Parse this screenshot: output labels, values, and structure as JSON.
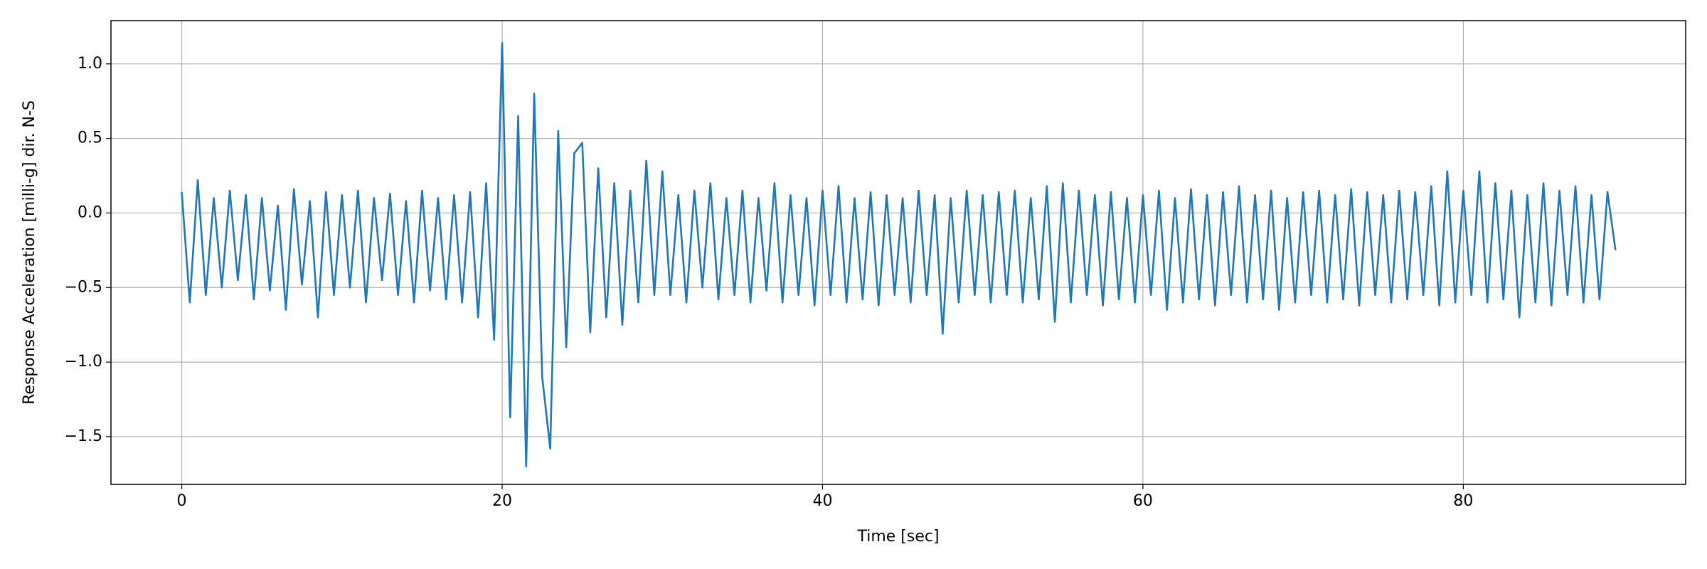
{
  "chart_data": {
    "type": "line",
    "xlabel": "Time [sec]",
    "ylabel": "Response Acceleration [milli-g] dir. N-S",
    "color": "#1f77b4",
    "grid": true,
    "xlim": [
      -4.42,
      93.88
    ],
    "ylim": [
      -1.82,
      1.29
    ],
    "xticks": [
      0,
      20,
      40,
      60,
      80
    ],
    "yticks": [
      {
        "value": -1.5,
        "label": "−1.5"
      },
      {
        "value": -1.0,
        "label": "−1.0"
      },
      {
        "value": -0.5,
        "label": "−0.5"
      },
      {
        "value": 0.0,
        "label": "0.0"
      },
      {
        "value": 0.5,
        "label": "0.5"
      },
      {
        "value": 1.0,
        "label": "1.0"
      }
    ],
    "x": [
      0,
      0.5,
      1,
      1.5,
      2,
      2.5,
      3,
      3.5,
      4,
      4.5,
      5,
      5.5,
      6,
      6.5,
      7,
      7.5,
      8,
      8.5,
      9,
      9.5,
      10,
      10.5,
      11,
      11.5,
      12,
      12.5,
      13,
      13.5,
      14,
      14.5,
      15,
      15.5,
      16,
      16.5,
      17,
      17.5,
      18,
      18.5,
      19,
      19.5,
      20,
      20.5,
      21,
      21.5,
      22,
      22.5,
      23,
      23.5,
      24,
      24.5,
      25,
      25.5,
      26,
      26.5,
      27,
      27.5,
      28,
      28.5,
      29,
      29.5,
      30,
      30.5,
      31,
      31.5,
      32,
      32.5,
      33,
      33.5,
      34,
      34.5,
      35,
      35.5,
      36,
      36.5,
      37,
      37.5,
      38,
      38.5,
      39,
      39.5,
      40,
      40.5,
      41,
      41.5,
      42,
      42.5,
      43,
      43.5,
      44,
      44.5,
      45,
      45.5,
      46,
      46.5,
      47,
      47.5,
      48,
      48.5,
      49,
      49.5,
      50,
      50.5,
      51,
      51.5,
      52,
      52.5,
      53,
      53.5,
      54,
      54.5,
      55,
      55.5,
      56,
      56.5,
      57,
      57.5,
      58,
      58.5,
      59,
      59.5,
      60,
      60.5,
      61,
      61.5,
      62,
      62.5,
      63,
      63.5,
      64,
      64.5,
      65,
      65.5,
      66,
      66.5,
      67,
      67.5,
      68,
      68.5,
      69,
      69.5,
      70,
      70.5,
      71,
      71.5,
      72,
      72.5,
      73,
      73.5,
      74,
      74.5,
      75,
      75.5,
      76,
      76.5,
      77,
      77.5,
      78,
      78.5,
      79,
      79.5,
      80,
      80.5,
      81,
      81.5,
      82,
      82.5,
      83,
      83.5,
      84,
      84.5,
      85,
      85.5,
      86,
      86.5,
      87,
      87.5,
      88,
      88.5,
      89,
      89.5
    ],
    "values": [
      0.14,
      -0.6,
      0.22,
      -0.55,
      0.1,
      -0.5,
      0.15,
      -0.45,
      0.12,
      -0.58,
      0.1,
      -0.52,
      0.05,
      -0.65,
      0.16,
      -0.48,
      0.08,
      -0.7,
      0.14,
      -0.55,
      0.12,
      -0.5,
      0.15,
      -0.6,
      0.1,
      -0.45,
      0.13,
      -0.55,
      0.08,
      -0.6,
      0.15,
      -0.52,
      0.1,
      -0.58,
      0.12,
      -0.6,
      0.14,
      -0.7,
      0.2,
      -0.85,
      1.14,
      -1.37,
      0.65,
      -1.7,
      0.8,
      -1.1,
      -1.58,
      0.55,
      -0.9,
      0.4,
      0.47,
      -0.8,
      0.3,
      -0.7,
      0.2,
      -0.75,
      0.15,
      -0.6,
      0.35,
      -0.55,
      0.28,
      -0.55,
      0.12,
      -0.6,
      0.15,
      -0.5,
      0.2,
      -0.58,
      0.1,
      -0.55,
      0.15,
      -0.6,
      0.1,
      -0.52,
      0.2,
      -0.6,
      0.12,
      -0.55,
      0.1,
      -0.62,
      0.15,
      -0.55,
      0.18,
      -0.6,
      0.1,
      -0.58,
      0.14,
      -0.62,
      0.12,
      -0.55,
      0.1,
      -0.6,
      0.15,
      -0.55,
      0.12,
      -0.81,
      0.1,
      -0.6,
      0.15,
      -0.55,
      0.12,
      -0.6,
      0.14,
      -0.55,
      0.15,
      -0.6,
      0.1,
      -0.58,
      0.18,
      -0.73,
      0.2,
      -0.6,
      0.15,
      -0.55,
      0.12,
      -0.62,
      0.14,
      -0.58,
      0.1,
      -0.6,
      0.12,
      -0.55,
      0.15,
      -0.65,
      0.1,
      -0.6,
      0.16,
      -0.58,
      0.12,
      -0.62,
      0.14,
      -0.55,
      0.18,
      -0.6,
      0.12,
      -0.58,
      0.15,
      -0.65,
      0.1,
      -0.6,
      0.14,
      -0.55,
      0.15,
      -0.6,
      0.12,
      -0.58,
      0.16,
      -0.62,
      0.14,
      -0.55,
      0.12,
      -0.6,
      0.15,
      -0.58,
      0.14,
      -0.55,
      0.18,
      -0.62,
      0.28,
      -0.6,
      0.15,
      -0.55,
      0.28,
      -0.6,
      0.2,
      -0.58,
      0.15,
      -0.7,
      0.12,
      -0.6,
      0.2,
      -0.62,
      0.15,
      -0.55,
      0.18,
      -0.6,
      0.12,
      -0.58,
      0.14,
      -0.25
    ]
  }
}
